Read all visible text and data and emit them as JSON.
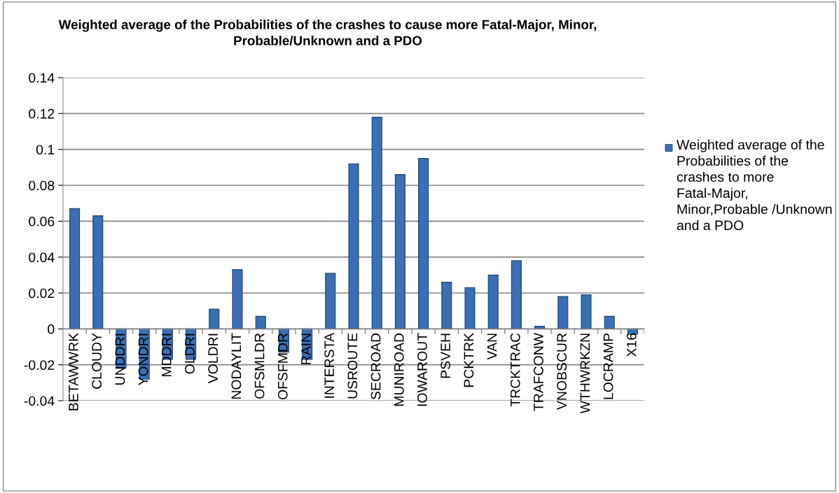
{
  "chart_data": {
    "type": "bar",
    "title": "Weighted average of the Probabilities of the crashes to cause more Fatal-Major, Minor, Probable/Unknown and a PDO",
    "categories": [
      "BETAWWRK",
      "CLOUDY",
      "UNDDRI",
      "YONDRI",
      "MDDRI",
      "OLDRI",
      "VOLDRI",
      "NODAYLIT",
      "OFSMLDR",
      "OFSFMDR",
      "RAIN",
      "INTERSTA",
      "USROUTE",
      "SECROAD",
      "MUNIROAD",
      "IOWAROUT",
      "PSVEH",
      "PCKTRK",
      "VAN",
      "TRCKTRAC",
      "TRAFCONW",
      "VNOBSCUR",
      "WTHWRKZN",
      "LOCRAMP",
      "X16"
    ],
    "series": [
      {
        "name": "Weighted average of the Probabilities of the crashes to more Fatal-Major, Minor,Probable /Unknown and a PDO",
        "color": "#3a6fb5",
        "values": [
          0.067,
          0.063,
          -0.022,
          -0.028,
          -0.017,
          -0.017,
          0.011,
          0.033,
          0.007,
          -0.013,
          -0.017,
          0.031,
          0.092,
          0.118,
          0.086,
          0.095,
          0.026,
          0.023,
          0.03,
          0.038,
          0.0015,
          0.018,
          0.019,
          0.007,
          -0.003
        ]
      }
    ],
    "ylim": [
      -0.04,
      0.14
    ],
    "yticks": [
      {
        "value": -0.04,
        "label": "-0.04"
      },
      {
        "value": -0.02,
        "label": "-0.02"
      },
      0,
      0.02,
      0.04,
      0.06,
      0.08,
      0.1,
      0.12,
      0.14
    ],
    "grid": "y",
    "legend": "right"
  }
}
